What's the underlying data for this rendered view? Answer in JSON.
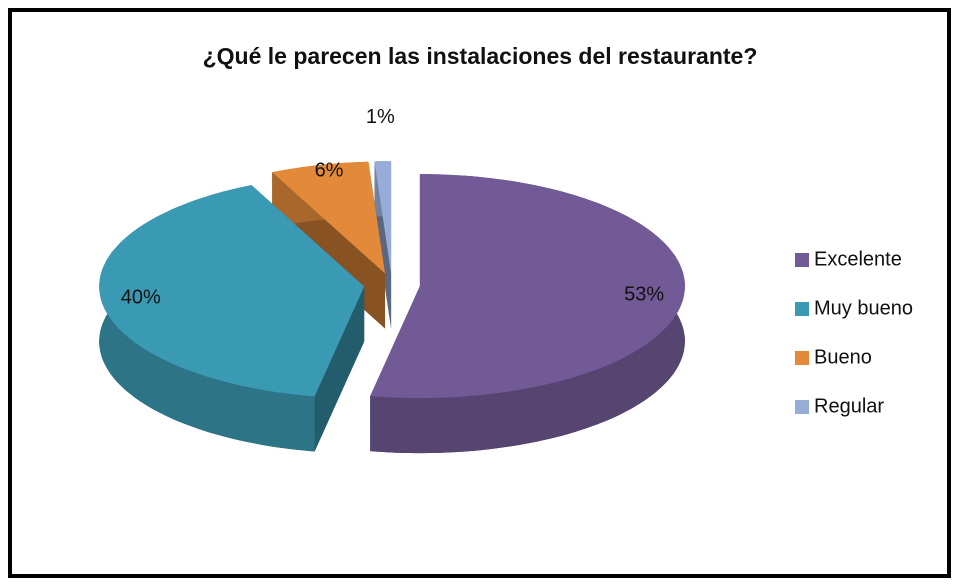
{
  "chart_data": {
    "type": "pie",
    "title": "¿Qué le parecen las instalaciones del restaurante?",
    "categories": [
      "Excelente",
      "Muy bueno",
      "Bueno",
      "Regular"
    ],
    "values": [
      53,
      40,
      6,
      1
    ],
    "value_labels": [
      "53%",
      "40%",
      "6%",
      "1%"
    ],
    "colors": [
      "#725a96",
      "#3a9ab3",
      "#e3893a",
      "#97acd6"
    ],
    "legend": "right"
  }
}
